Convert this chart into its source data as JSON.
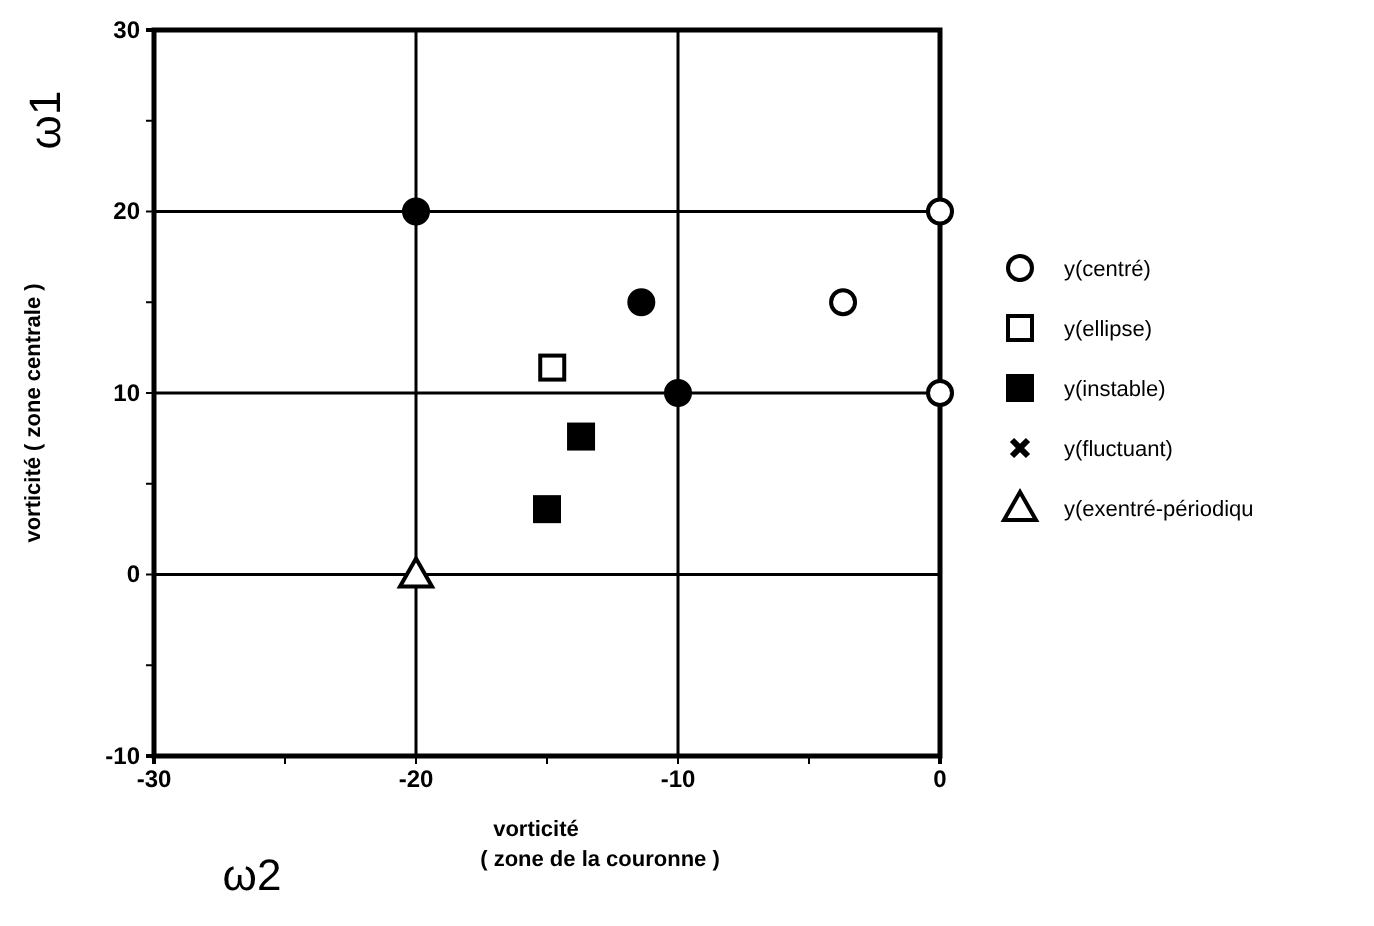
{
  "chart_data": {
    "type": "scatter",
    "xlabel": "vorticité\n( zone de la couronne )",
    "ylabel": "vorticité  ( zone centrale )",
    "annotations": [
      "ω1",
      "ω2"
    ],
    "xlim": [
      -30,
      0
    ],
    "ylim": [
      -10,
      30
    ],
    "xticks": [
      -30,
      {
        "value": -25,
        "label": null
      },
      -20,
      {
        "value": -15,
        "label": null
      },
      -10,
      {
        "value": -5,
        "label": null
      },
      0
    ],
    "yticks": [
      -10,
      {
        "value": -5,
        "label": null
      },
      0,
      {
        "value": 5,
        "label": null
      },
      10,
      {
        "value": 15,
        "label": null
      },
      20,
      {
        "value": 25,
        "label": null
      },
      30
    ],
    "grid": true,
    "legend": "right",
    "series": [
      {
        "name": "y(centré)",
        "marker": "circle",
        "color": "#ffffff",
        "x": [
          0,
          0,
          -3.7
        ],
        "values": [
          20,
          10,
          15
        ]
      },
      {
        "name": "y(ellipse)",
        "marker": "square",
        "color": "#ffffff",
        "x": [
          -14.8
        ],
        "values": [
          11.4
        ]
      },
      {
        "name": "y(instable)",
        "marker": "square",
        "color": "#000000",
        "x": [
          -13.7,
          -15.0
        ],
        "values": [
          7.6,
          3.6
        ]
      },
      {
        "name": "y(fluctuant)",
        "marker": "cross",
        "color": "#000000"
      },
      {
        "name": "y(exentré-périodiqu",
        "marker": "triangle",
        "color": "#ffffff",
        "x": [
          -20
        ],
        "values": [
          0
        ]
      },
      {
        "marker": "circle",
        "color": "#000000",
        "x": [
          -20,
          -11.4,
          -10
        ],
        "values": [
          20,
          15,
          10
        ]
      }
    ]
  }
}
